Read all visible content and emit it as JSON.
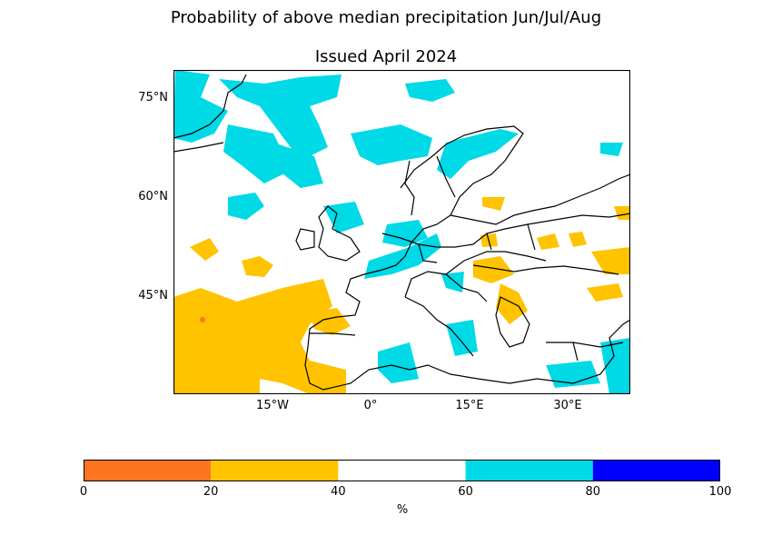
{
  "title": "Probability of above median precipitation Jun/Jul/Aug",
  "subtitle": "Issued April 2024",
  "map": {
    "lat_labels": [
      "75°N",
      "60°N",
      "45°N"
    ],
    "lon_labels": [
      "15°W",
      "0°",
      "15°E",
      "30°E"
    ],
    "land_color": "#ffffff",
    "border_color": "#000000"
  },
  "colorbar": {
    "unit": "%",
    "ticks": [
      "0",
      "20",
      "40",
      "60",
      "80",
      "100"
    ],
    "bins": [
      {
        "range": [
          0,
          20
        ],
        "color": "#ff7420"
      },
      {
        "range": [
          20,
          40
        ],
        "color": "#ffc300"
      },
      {
        "range": [
          40,
          60
        ],
        "color": "#ffffff"
      },
      {
        "range": [
          60,
          80
        ],
        "color": "#00d9e6"
      },
      {
        "range": [
          80,
          100
        ],
        "color": "#0000ff"
      }
    ]
  }
}
